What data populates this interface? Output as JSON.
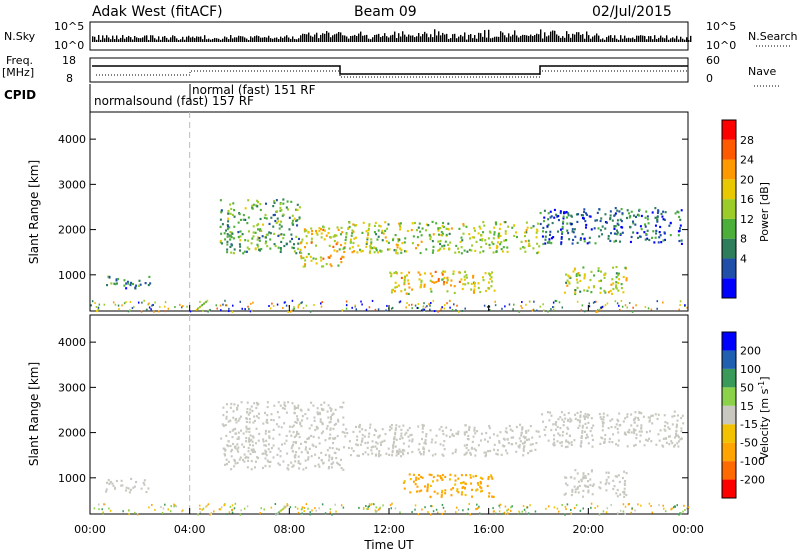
{
  "header": {
    "title": "Adak West (fitACF)",
    "beam": "Beam 09",
    "date": "02/Jul/2015"
  },
  "top_panels": {
    "nsky_label": "N.Sky",
    "nsky_ticks": [
      "10^5",
      "10^0"
    ],
    "nsearch_label": "N.Search",
    "nsearch_ticks": [
      "10^5",
      "10^0"
    ],
    "freq_label": "Freq.",
    "freq_unit": "[MHz]",
    "freq_ticks": [
      "18",
      "8"
    ],
    "nave_label": "Nave",
    "nave_ticks": [
      "60",
      "0"
    ],
    "cpid_label": "CPID",
    "cpid_segments": [
      "normalsound (fast) 157 RF",
      "normal (fast) 151 RF"
    ]
  },
  "colors": {
    "power": [
      "#0000ff",
      "#1f4fa8",
      "#2e7d5b",
      "#4caf3a",
      "#9ccc2a",
      "#e8c800",
      "#ff9900",
      "#ff5a00",
      "#ff0000"
    ],
    "velocity": [
      "#ff0000",
      "#ff6a00",
      "#ffa400",
      "#f2c200",
      "#c8c8c0",
      "#8bd14a",
      "#3a9a5a",
      "#2060b0",
      "#0000ff"
    ]
  },
  "chart_data": [
    {
      "type": "heatmap",
      "panel": "power",
      "ylabel": "Slant Range [km]",
      "y_ticks": [
        "4000",
        "3000",
        "2000",
        "1000"
      ],
      "ylim": [
        200,
        4600
      ],
      "xlim": [
        0,
        24
      ],
      "colorbar_label": "Power [dB]",
      "colorbar_ticks": [
        "28",
        "24",
        "20",
        "16",
        "12",
        "8",
        "4"
      ],
      "colorbar_range": [
        0,
        32
      ],
      "regions": [
        {
          "t0": 0.6,
          "t1": 2.4,
          "r0": 700,
          "r1": 1000,
          "val": 10
        },
        {
          "t0": 5.2,
          "t1": 8.4,
          "r0": 1500,
          "r1": 2700,
          "val": 14
        },
        {
          "t0": 8.4,
          "t1": 10.2,
          "r0": 1200,
          "r1": 2100,
          "val": 22
        },
        {
          "t0": 10.2,
          "t1": 18.0,
          "r0": 1500,
          "r1": 2200,
          "val": 18
        },
        {
          "t0": 12.0,
          "t1": 16.2,
          "r0": 600,
          "r1": 1100,
          "val": 22
        },
        {
          "t0": 18.0,
          "t1": 23.8,
          "r0": 1700,
          "r1": 2500,
          "val": 8
        },
        {
          "t0": 19.0,
          "t1": 21.5,
          "r0": 600,
          "r1": 1200,
          "val": 18
        }
      ]
    },
    {
      "type": "heatmap",
      "panel": "velocity",
      "ylabel": "Slant Range [km]",
      "y_ticks": [
        "4000",
        "3000",
        "2000",
        "1000"
      ],
      "ylim": [
        200,
        4600
      ],
      "xlim": [
        0,
        24
      ],
      "xlabel": "Time UT",
      "x_ticks": [
        "00:00",
        "04:00",
        "08:00",
        "12:00",
        "16:00",
        "20:00",
        "00:00"
      ],
      "colorbar_label": "Velocity [m s",
      "colorbar_label_sup": "-1",
      "colorbar_label_end": "]",
      "colorbar_ticks": [
        "200",
        "100",
        "50",
        "15",
        "-15",
        "-50",
        "-100",
        "-200"
      ],
      "regions": [
        {
          "t0": 0.6,
          "t1": 2.4,
          "r0": 700,
          "r1": 1000,
          "val": 0
        },
        {
          "t0": 5.2,
          "t1": 10.2,
          "r0": 1200,
          "r1": 2700,
          "val": 0
        },
        {
          "t0": 10.2,
          "t1": 18.0,
          "r0": 1500,
          "r1": 2200,
          "val": 0
        },
        {
          "t0": 12.5,
          "t1": 16.2,
          "r0": 600,
          "r1": 1100,
          "val": -60
        },
        {
          "t0": 18.0,
          "t1": 23.8,
          "r0": 1700,
          "r1": 2500,
          "val": 0
        },
        {
          "t0": 19.0,
          "t1": 21.5,
          "r0": 600,
          "r1": 1200,
          "val": 0
        }
      ]
    }
  ]
}
